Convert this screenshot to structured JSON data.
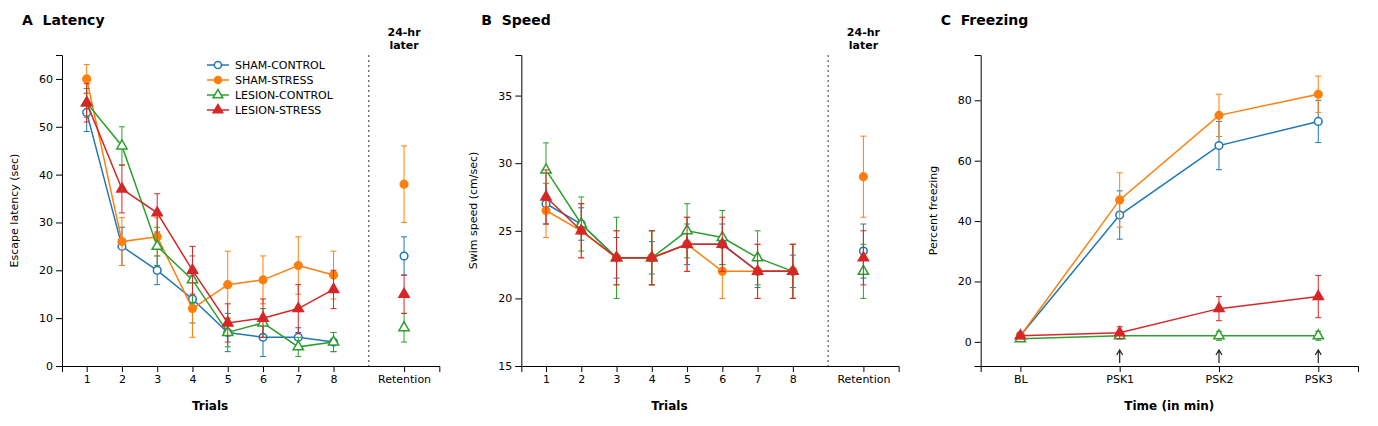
{
  "chart_data": [
    {
      "type": "line",
      "title": "A  Latency",
      "xlabel": "Trials",
      "ylabel": "Escape latency (sec)",
      "x": [
        1,
        2,
        3,
        4,
        5,
        6,
        7,
        8,
        9,
        10
      ],
      "xlim": [
        0.3,
        11.0
      ],
      "xticks": [
        1,
        2,
        3,
        4,
        5,
        6,
        7,
        8,
        {
          "value": 10,
          "label": "Retention"
        }
      ],
      "ylim": [
        0,
        65
      ],
      "yticks": [
        0,
        10,
        20,
        30,
        40,
        50,
        60
      ],
      "grid": false,
      "legend": "upper right",
      "annotations": [
        "24-hr\nlater"
      ],
      "series": [
        {
          "name": "SHAM-CONTROL",
          "marker": "open-circle",
          "values": [
            53,
            25,
            20,
            14,
            7,
            6,
            6,
            5,
            null,
            23
          ],
          "errors": [
            4,
            4,
            3,
            5,
            4,
            4,
            2,
            2,
            null,
            4
          ]
        },
        {
          "name": "SHAM-STRESS",
          "marker": "filled-circle",
          "values": [
            60,
            26,
            27,
            12,
            17,
            18,
            21,
            19,
            null,
            38
          ],
          "errors": [
            3,
            5,
            4,
            6,
            7,
            5,
            6,
            5,
            null,
            8
          ]
        },
        {
          "name": "LESION-CONTROL",
          "marker": "open-triangle",
          "values": [
            55,
            46,
            25,
            18,
            7,
            9,
            4,
            5,
            null,
            8
          ],
          "errors": [
            3,
            4,
            4,
            5,
            3,
            3,
            2,
            2,
            null,
            3
          ]
        },
        {
          "name": "LESION-STRESS",
          "marker": "filled-triangle",
          "values": [
            55,
            37,
            32,
            20,
            9,
            10,
            12,
            16,
            null,
            15
          ],
          "errors": [
            4,
            5,
            4,
            5,
            4,
            4,
            5,
            4,
            null,
            4
          ]
        }
      ]
    },
    {
      "type": "line",
      "title": "B  Speed",
      "xlabel": "Trials",
      "ylabel": "Swim speed (cm/sec)",
      "x": [
        1,
        2,
        3,
        4,
        5,
        6,
        7,
        8,
        9,
        10
      ],
      "xlim": [
        0.3,
        11.0
      ],
      "xticks": [
        1,
        2,
        3,
        4,
        5,
        6,
        7,
        8,
        {
          "value": 10,
          "label": "Retention"
        }
      ],
      "ylim": [
        15,
        38
      ],
      "yticks": [
        15,
        20,
        25,
        30,
        35
      ],
      "grid": false,
      "annotations": [
        "24-hr\nlater"
      ],
      "series": [
        {
          "marker": "open-circle",
          "values": [
            27,
            25.5,
            23,
            23,
            24,
            24,
            22,
            22,
            null,
            23.5
          ],
          "errors": [
            1.5,
            1.2,
            1.5,
            1.2,
            1.5,
            1.5,
            1.2,
            1.2,
            null,
            2
          ]
        },
        {
          "marker": "filled-circle",
          "values": [
            26.5,
            25,
            23,
            23,
            24,
            22,
            22,
            22,
            null,
            29
          ],
          "errors": [
            2,
            2,
            2,
            2,
            2,
            2,
            2,
            2,
            null,
            3
          ]
        },
        {
          "marker": "open-triangle",
          "values": [
            29.5,
            25.5,
            23,
            23,
            25,
            24.5,
            23,
            22,
            null,
            22
          ],
          "errors": [
            2,
            2,
            3,
            2,
            2,
            2,
            2,
            2,
            null,
            2
          ]
        },
        {
          "marker": "filled-triangle",
          "values": [
            27.5,
            25,
            23,
            23,
            24,
            24,
            22,
            22,
            null,
            23
          ],
          "errors": [
            2,
            2,
            2,
            2,
            2,
            2,
            2,
            2,
            null,
            2
          ]
        }
      ]
    },
    {
      "type": "line",
      "title": "C  Freezing",
      "xlabel": "Time (in min)",
      "ylabel": "Percent freezing",
      "categories": [
        "BL",
        "PSK1",
        "PSK2",
        "PSK3"
      ],
      "ylim": [
        -8,
        95
      ],
      "yticks": [
        0,
        20,
        40,
        60,
        80
      ],
      "grid": false,
      "series": [
        {
          "marker": "open-circle",
          "values": [
            2,
            42,
            65,
            73
          ],
          "errors": [
            1,
            8,
            8,
            7
          ]
        },
        {
          "marker": "filled-circle",
          "values": [
            2,
            47,
            75,
            82
          ],
          "errors": [
            1,
            9,
            7,
            6
          ]
        },
        {
          "marker": "open-triangle",
          "values": [
            1,
            2,
            2,
            2
          ],
          "errors": [
            0.5,
            1,
            1.5,
            1.5
          ]
        },
        {
          "marker": "filled-triangle",
          "values": [
            2,
            3,
            11,
            15
          ],
          "errors": [
            1,
            2,
            4,
            7
          ]
        }
      ]
    }
  ]
}
